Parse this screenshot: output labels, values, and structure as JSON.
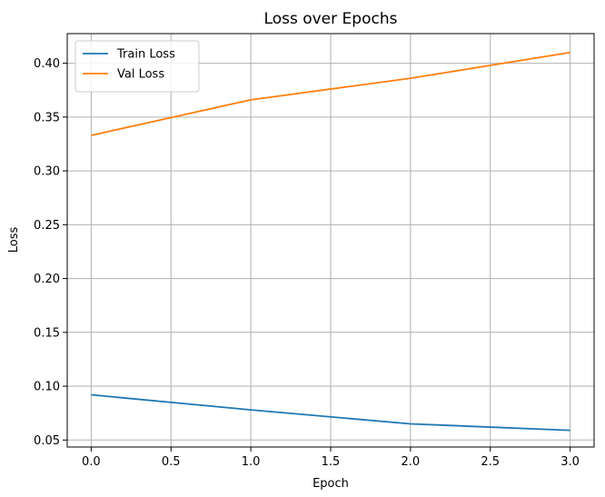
{
  "chart_data": {
    "type": "line",
    "title": "Loss over Epochs",
    "xlabel": "Epoch",
    "ylabel": "Loss",
    "xlim": [
      -0.15,
      3.15
    ],
    "ylim": [
      0.0435,
      0.4275
    ],
    "xticks": [
      0.0,
      0.5,
      1.0,
      1.5,
      2.0,
      2.5,
      3.0
    ],
    "xtick_labels": [
      "0.0",
      "0.5",
      "1.0",
      "1.5",
      "2.0",
      "2.5",
      "3.0"
    ],
    "yticks": [
      0.05,
      0.1,
      0.15,
      0.2,
      0.25,
      0.3,
      0.35,
      0.4
    ],
    "ytick_labels": [
      "0.05",
      "0.10",
      "0.15",
      "0.20",
      "0.25",
      "0.30",
      "0.35",
      "0.40"
    ],
    "grid": true,
    "legend_position": "top-left",
    "x": [
      0,
      1,
      2,
      3
    ],
    "series": [
      {
        "name": "Train Loss",
        "color": "#1f77b4",
        "values": [
          0.092,
          0.078,
          0.065,
          0.059
        ]
      },
      {
        "name": "Val Loss",
        "color": "#ff7f0e",
        "values": [
          0.333,
          0.366,
          0.386,
          0.41
        ]
      }
    ]
  }
}
